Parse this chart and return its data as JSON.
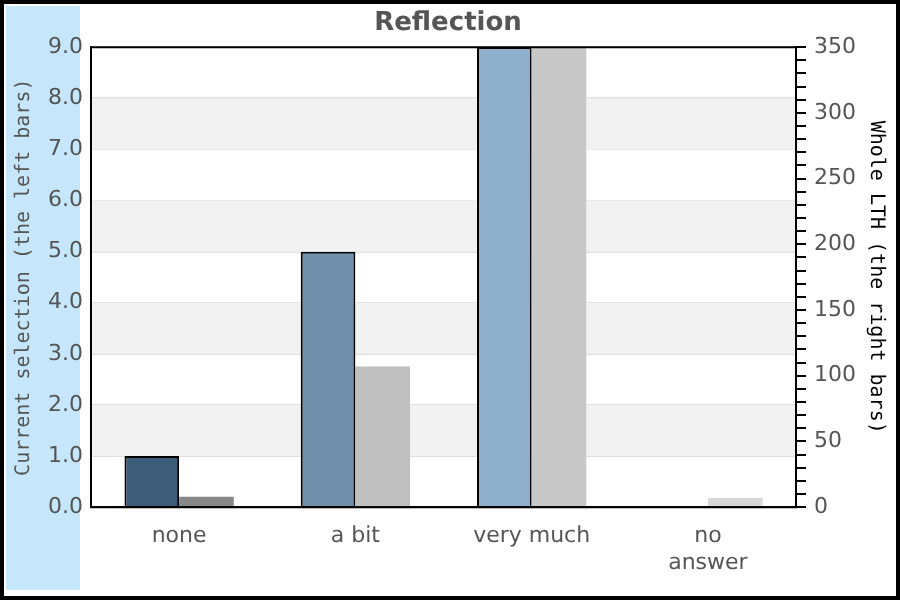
{
  "chart_data": {
    "type": "bar",
    "title": "Reflection",
    "ylabel": "Current selection (the left bars)",
    "y2label": "Whole LTH (the right bars)",
    "categories": [
      "none",
      "a bit",
      "very much",
      "no\nanswer"
    ],
    "series": [
      {
        "colors": [
          "#3d5c7a",
          "#7090ab",
          "#8fb0cc",
          "#8fb0cc"
        ],
        "values": [
          1,
          5,
          9,
          0
        ]
      },
      {
        "axis": "y2",
        "colors": [
          "#888888",
          "#c0c0c0",
          "#c8c8c8",
          "#d8d8d8"
        ],
        "values": [
          8,
          107,
          350,
          7
        ]
      }
    ],
    "ylim": [
      0,
      9
    ],
    "yticks": [
      {
        "value": 0,
        "label": "0.0"
      },
      {
        "value": 1,
        "label": "1.0"
      },
      {
        "value": 2,
        "label": "2.0"
      },
      {
        "value": 3,
        "label": "3.0"
      },
      {
        "value": 4,
        "label": "4.0"
      },
      {
        "value": 5,
        "label": "5.0"
      },
      {
        "value": 6,
        "label": "6.0"
      },
      {
        "value": 7,
        "label": "7.0"
      },
      {
        "value": 8,
        "label": "8.0"
      },
      {
        "value": 9,
        "label": "9.0"
      }
    ],
    "y2lim": [
      0,
      350
    ],
    "y2ticks": [
      0,
      {
        "value": 10,
        "label": null
      },
      {
        "value": 20,
        "label": null
      },
      {
        "value": 30,
        "label": null
      },
      {
        "value": 40,
        "label": null
      },
      50,
      {
        "value": 60,
        "label": null
      },
      {
        "value": 70,
        "label": null
      },
      {
        "value": 80,
        "label": null
      },
      {
        "value": 90,
        "label": null
      },
      100,
      {
        "value": 110,
        "label": null
      },
      {
        "value": 120,
        "label": null
      },
      {
        "value": 130,
        "label": null
      },
      {
        "value": 140,
        "label": null
      },
      150,
      {
        "value": 160,
        "label": null
      },
      {
        "value": 170,
        "label": null
      },
      {
        "value": 180,
        "label": null
      },
      {
        "value": 190,
        "label": null
      },
      200,
      {
        "value": 210,
        "label": null
      },
      {
        "value": 220,
        "label": null
      },
      {
        "value": 230,
        "label": null
      },
      {
        "value": 240,
        "label": null
      },
      250,
      {
        "value": 260,
        "label": null
      },
      {
        "value": 270,
        "label": null
      },
      {
        "value": 280,
        "label": null
      },
      {
        "value": 290,
        "label": null
      },
      300,
      {
        "value": 310,
        "label": null
      },
      {
        "value": 320,
        "label": null
      },
      {
        "value": 330,
        "label": null
      },
      {
        "value": 340,
        "label": null
      },
      350
    ],
    "bands": [
      {
        "axis": "y",
        "from": 1,
        "to": 2,
        "color": "#f2f2f2"
      },
      {
        "axis": "y",
        "from": 3,
        "to": 4,
        "color": "#f2f2f2"
      },
      {
        "axis": "y",
        "from": 5,
        "to": 6,
        "color": "#f2f2f2"
      },
      {
        "axis": "y",
        "from": 7,
        "to": 8,
        "color": "#f2f2f2"
      }
    ],
    "grid": "y",
    "legend": false
  }
}
